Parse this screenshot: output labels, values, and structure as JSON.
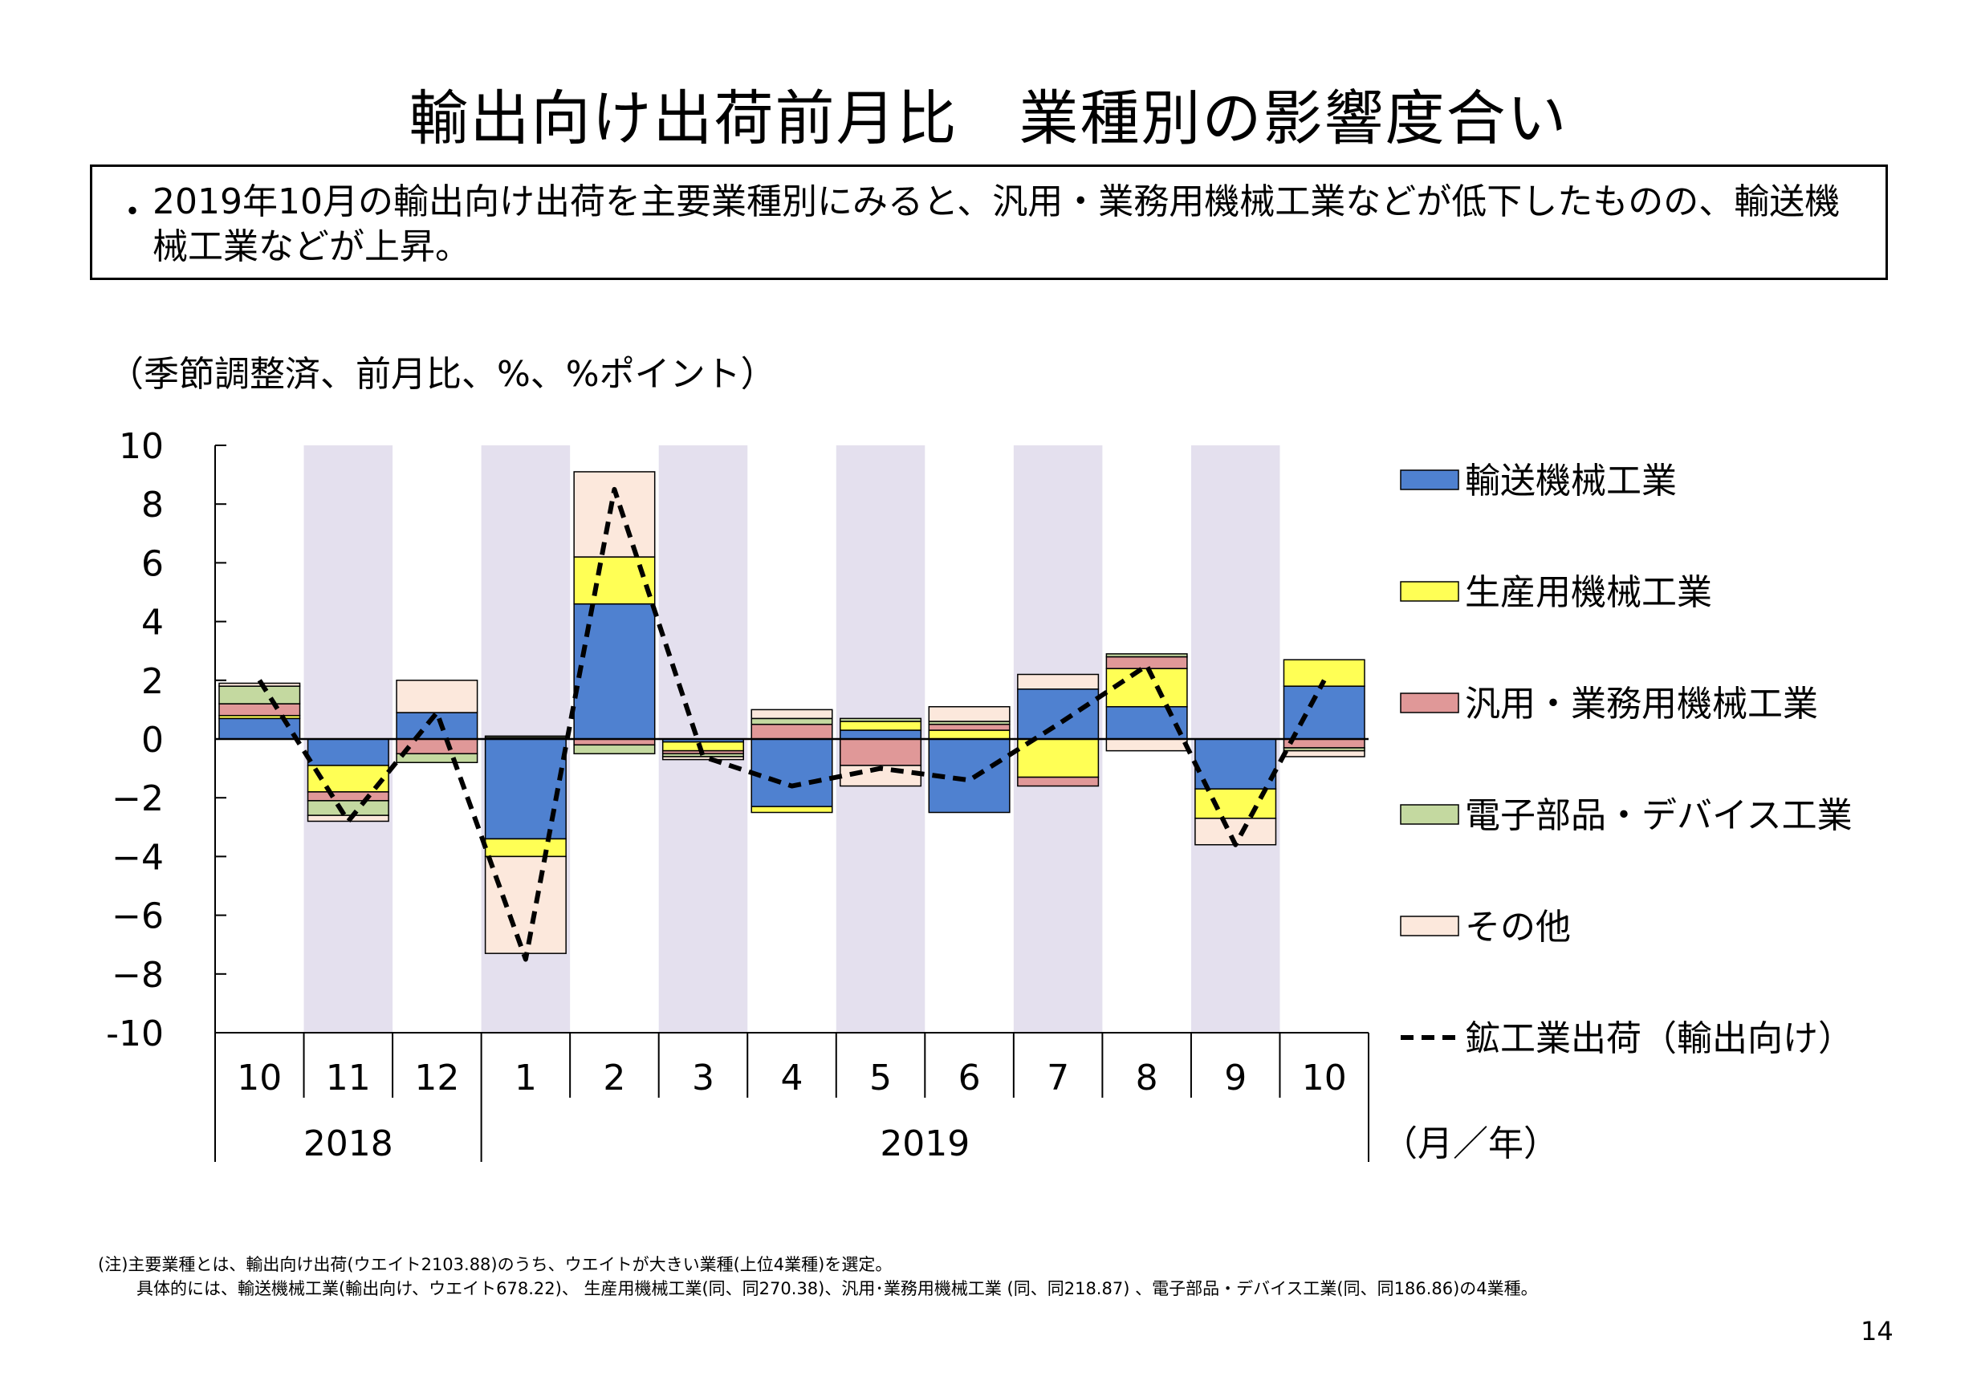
{
  "title": "輸出向け出荷前月比　業種別の影響度合い",
  "summary": {
    "bullet": "・",
    "text": "2019年10月の輸出向け出荷を主要業種別にみると、汎用・業務用機械工業などが低下したものの、輸送機械工業などが上昇。"
  },
  "unit_label": "（季節調整済、前月比、%、%ポイント）",
  "notes": {
    "line1": "(注)主要業種とは、輸出向け出荷(ウエイト2103.88)のうち、ウエイトが大きい業種(上位4業種)を選定。",
    "line2": "具体的には、輸送機械工業(輸出向け、ウエイト678.22)、 生産用機械工業(同、同270.38)、汎用･業務用機械工業 (同、同218.87) 、電子部品・デバイス工業(同、同186.86)の4業種。"
  },
  "page_number": "14",
  "colors": {
    "transport": "#4F81D0",
    "production": "#FFFF55",
    "general": "#E09898",
    "electronic": "#C4D9A0",
    "other": "#FCE8DC",
    "shade": "#E4E0EE"
  },
  "chart_data": {
    "type": "bar",
    "stacked": true,
    "ylim": [
      -10,
      10
    ],
    "y_ticks": [
      "10",
      "8",
      "6",
      "4",
      "2",
      "0",
      "−2",
      "−4",
      "−6",
      "−8",
      "-10"
    ],
    "categories": [
      "10",
      "11",
      "12",
      "1",
      "2",
      "3",
      "4",
      "5",
      "6",
      "7",
      "8",
      "9",
      "10"
    ],
    "year_groups": [
      {
        "label": "2018",
        "count": 3
      },
      {
        "label": "2019",
        "count": 10
      }
    ],
    "x_unit_label": "（月／年）",
    "shaded_categories": [
      1,
      3,
      5,
      7,
      9,
      11
    ],
    "series": [
      {
        "name": "輸送機械工業",
        "key": "transport",
        "values": [
          0.7,
          -0.9,
          0.9,
          -3.4,
          4.6,
          -0.1,
          -2.3,
          0.3,
          -2.5,
          1.7,
          1.1,
          -1.7,
          1.8
        ]
      },
      {
        "name": "生産用機械工業",
        "key": "production",
        "values": [
          0.1,
          -0.9,
          0.0,
          -0.6,
          1.6,
          -0.3,
          -0.2,
          0.3,
          0.3,
          -1.3,
          1.3,
          -1.0,
          0.9
        ]
      },
      {
        "name": "汎用・業務用機械工業",
        "key": "general",
        "values": [
          0.4,
          -0.3,
          -0.5,
          0.05,
          -0.2,
          -0.1,
          0.5,
          -0.9,
          0.2,
          -0.3,
          0.4,
          0.0,
          -0.3
        ]
      },
      {
        "name": "電子部品・デバイス工業",
        "key": "electronic",
        "values": [
          0.6,
          -0.5,
          -0.3,
          0.05,
          -0.3,
          -0.1,
          0.2,
          0.1,
          0.1,
          0.0,
          0.1,
          0.0,
          -0.1
        ]
      },
      {
        "name": "その他",
        "key": "other",
        "values": [
          0.1,
          -0.2,
          1.1,
          -3.3,
          2.9,
          -0.1,
          0.3,
          -0.7,
          0.5,
          0.5,
          -0.4,
          -0.9,
          -0.2
        ]
      }
    ],
    "line": {
      "name": "鉱工業出荷（輸出向け）",
      "values": [
        2.0,
        -2.8,
        0.9,
        -7.5,
        8.5,
        -0.6,
        -1.6,
        -1.0,
        -1.4,
        0.5,
        2.5,
        -3.6,
        2.0
      ]
    }
  }
}
